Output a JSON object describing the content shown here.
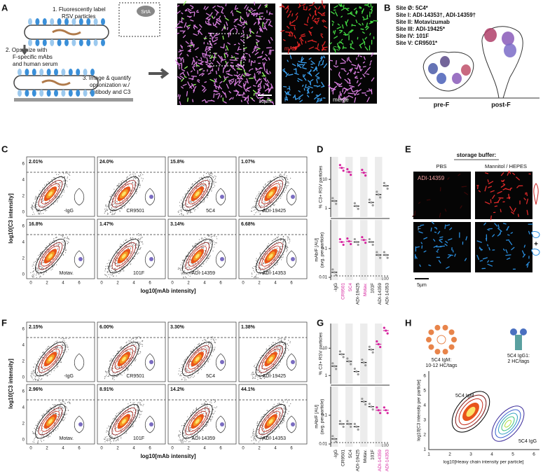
{
  "panel_labels": [
    "A",
    "B",
    "C",
    "D",
    "E",
    "F",
    "G",
    "H"
  ],
  "a": {
    "steps": [
      "1. Fluorescently label",
      "RSV particles",
      "2. Opsonize with",
      "F-specific mAbs",
      "and human serum",
      "3. Image & quantify",
      "opsonization w./",
      "antibody and C3"
    ],
    "enzyme": "SrtA",
    "channels": [
      "mAb",
      "C3",
      "F",
      "merge"
    ],
    "scale": "10µm"
  },
  "b": {
    "sites": [
      "Site Ø:  5C4*",
      "Site I:  ADI-14353†, ADI-14359†",
      "Site II:  Motavizumab",
      "Site III:  ADI-19425*",
      "Site IV:  101F",
      "Site V:  CR9501*"
    ],
    "pre": "pre-F",
    "post": "post-F"
  },
  "c": {
    "x_label": "log10[mAb intensity]",
    "y_label": "log10[C3 intensity]",
    "ticks": [
      "0",
      "2",
      "4",
      "6"
    ],
    "plots": [
      {
        "pct": "2.01%",
        "name": "-IgG"
      },
      {
        "pct": "24.0%",
        "name": "CR9501"
      },
      {
        "pct": "15.8%",
        "name": "5C4"
      },
      {
        "pct": "1.07%",
        "name": "ADI-19425"
      },
      {
        "pct": "16.8%",
        "name": "Motav."
      },
      {
        "pct": "1.47%",
        "name": "101F"
      },
      {
        "pct": "3.14%",
        "name": "ADI-14359"
      },
      {
        "pct": "6.68%",
        "name": "ADI-14353"
      }
    ]
  },
  "d": {
    "top_label": "% C3+ RSV particles",
    "bottom_label": [
      "mAb/F [AU]",
      "(avg. per particle)"
    ],
    "top_ticks": [
      "10",
      "1"
    ],
    "bottom_ticks": [
      "0.1",
      "0.01"
    ],
    "top_range": [
      0.5,
      60
    ],
    "bottom_range": [
      0.008,
      1
    ],
    "categories": [
      "-IgG",
      "CR9501",
      "5C4",
      "ADI-19425",
      "Motav.",
      "101F",
      "ADI-14359",
      "ADI-14353"
    ],
    "highlight": [
      1,
      2,
      4
    ],
    "highlight_color": "#d6249f",
    "lod": "LOD",
    "pct_means": [
      1.8,
      25,
      18,
      1.2,
      17,
      1.6,
      3,
      6
    ],
    "ratio_means": [
      0.015,
      0.17,
      0.18,
      0.17,
      0.2,
      0.17,
      0.06,
      0.06
    ]
  },
  "e": {
    "title": "storage buffer:",
    "columns": [
      "PBS",
      "Mannitol / HEPES"
    ],
    "rows": [
      "ADI-14359",
      "F"
    ],
    "scale": "5µm"
  },
  "f": {
    "x_label": "log10[mAb intensity]",
    "y_label": "log10[C3 intensity]",
    "ticks": [
      "0",
      "2",
      "4",
      "6"
    ],
    "plots": [
      {
        "pct": "2.15%",
        "name": "-IgG"
      },
      {
        "pct": "6.00%",
        "name": "CR9501"
      },
      {
        "pct": "3.30%",
        "name": "5C4"
      },
      {
        "pct": "1.38%",
        "name": "ADI-19425"
      },
      {
        "pct": "2.96%",
        "name": "Motav."
      },
      {
        "pct": "8.91%",
        "name": "101F"
      },
      {
        "pct": "14.2%",
        "name": "ADI-14359"
      },
      {
        "pct": "44.1%",
        "name": "ADI-14353"
      }
    ]
  },
  "g": {
    "top_label": "% C3+ RSV particles",
    "bottom_label": [
      "mAb/F [AU]",
      "(avg. per particle)"
    ],
    "top_ticks": [
      "10",
      "1"
    ],
    "bottom_ticks": [
      "0.1",
      "0.01"
    ],
    "top_range": [
      0.5,
      80
    ],
    "bottom_range": [
      0.008,
      1
    ],
    "categories": [
      "-IgG",
      "CR9501",
      "5C4",
      "ADI-19425",
      "Motav.",
      "101F",
      "ADI-14359",
      "ADI-14353"
    ],
    "highlight": [
      6,
      7
    ],
    "highlight_color": "#d6249f",
    "lod": "LOD",
    "pct_means": [
      2.2,
      6,
      3.3,
      1.4,
      3,
      8.9,
      14,
      44
    ],
    "ratio_means": [
      0.015,
      0.05,
      0.05,
      0.04,
      0.3,
      0.2,
      0.15,
      0.15
    ]
  },
  "h": {
    "igm": [
      "5C4 IgM:",
      "10-12 HC/tags"
    ],
    "igg": [
      "5C4 IgG1:",
      "2 HC/tags"
    ],
    "curve_labels": [
      "5C4 IgM",
      "5C4 IgG"
    ],
    "y_label": "log10[C3 intensity per particle]",
    "x_label": "log10[Heavy chain intensity per particle]",
    "xticks": [
      "1",
      "2",
      "3",
      "4",
      "5",
      "6"
    ],
    "yticks": [
      "1",
      "2",
      "3",
      "4",
      "5",
      "6"
    ]
  }
}
